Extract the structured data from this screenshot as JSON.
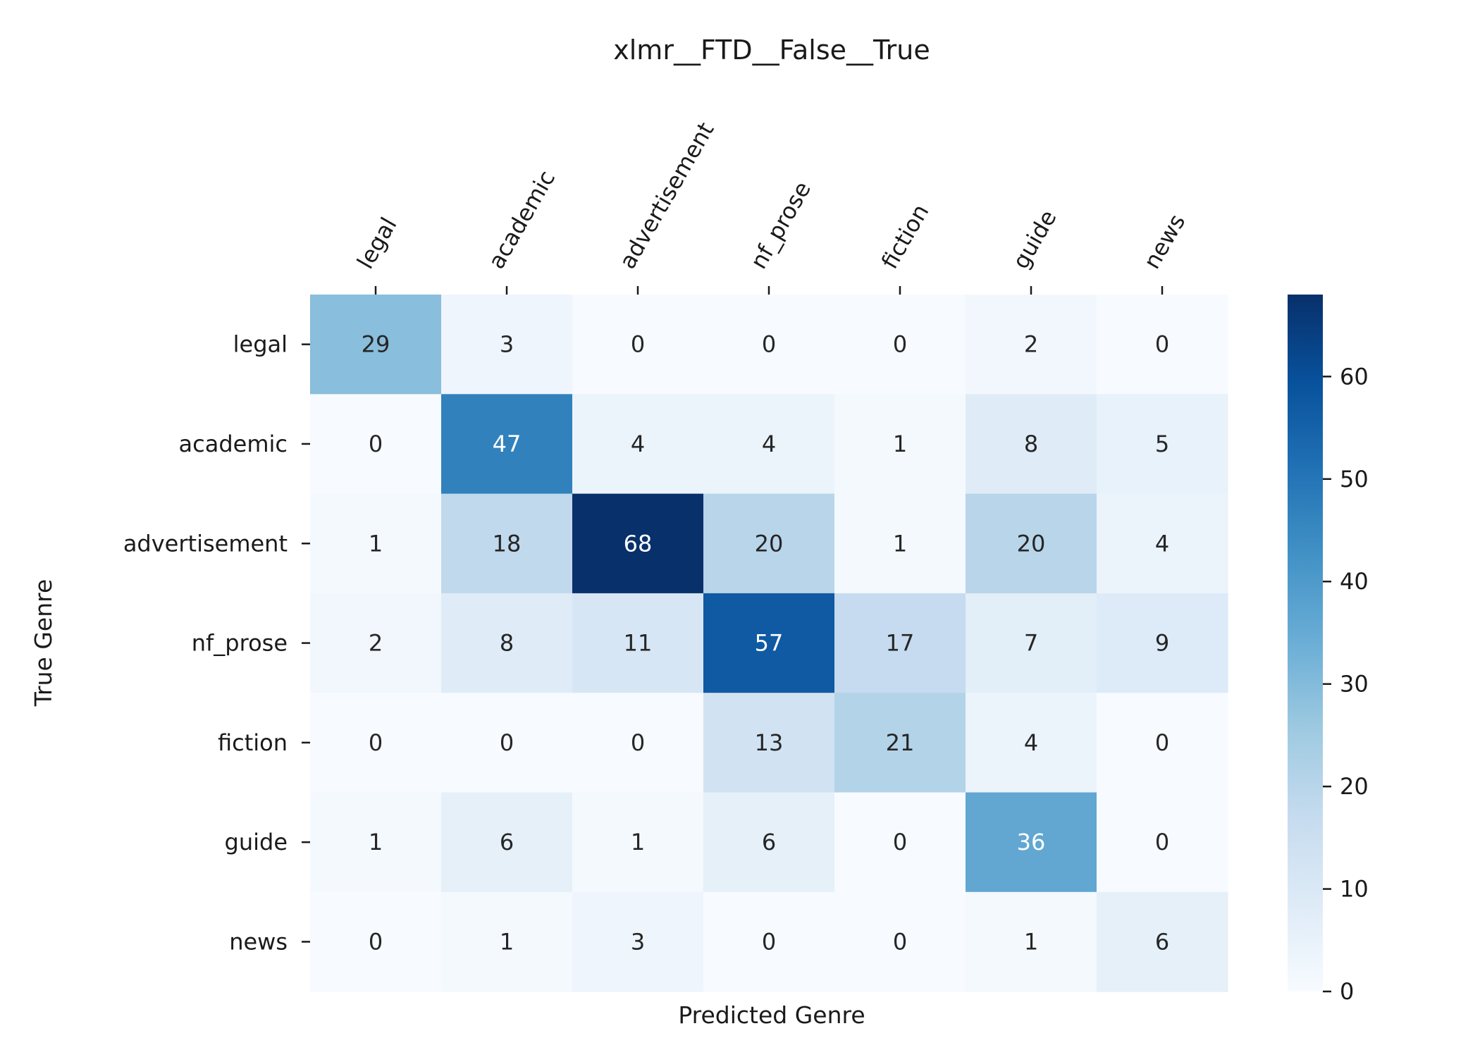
{
  "chart_data": {
    "type": "heatmap",
    "title": "xlmr__FTD__False__True",
    "xlabel": "Predicted Genre",
    "ylabel": "True Genre",
    "x_categories": [
      "legal",
      "academic",
      "advertisement",
      "nf_prose",
      "fiction",
      "guide",
      "news"
    ],
    "y_categories": [
      "legal",
      "academic",
      "advertisement",
      "nf_prose",
      "fiction",
      "guide",
      "news"
    ],
    "values": [
      [
        29,
        3,
        0,
        0,
        0,
        2,
        0
      ],
      [
        0,
        47,
        4,
        4,
        1,
        8,
        5
      ],
      [
        1,
        18,
        68,
        20,
        1,
        20,
        4
      ],
      [
        2,
        8,
        11,
        57,
        17,
        7,
        9
      ],
      [
        0,
        0,
        0,
        13,
        21,
        4,
        0
      ],
      [
        1,
        6,
        1,
        6,
        0,
        36,
        0
      ],
      [
        0,
        1,
        3,
        0,
        0,
        1,
        6
      ]
    ],
    "colormap": "Blues",
    "colorbar": {
      "range": [
        0,
        68
      ],
      "ticks": [
        0,
        10,
        20,
        30,
        40,
        50,
        60
      ]
    },
    "x_tick_position": "top",
    "grid": false
  }
}
